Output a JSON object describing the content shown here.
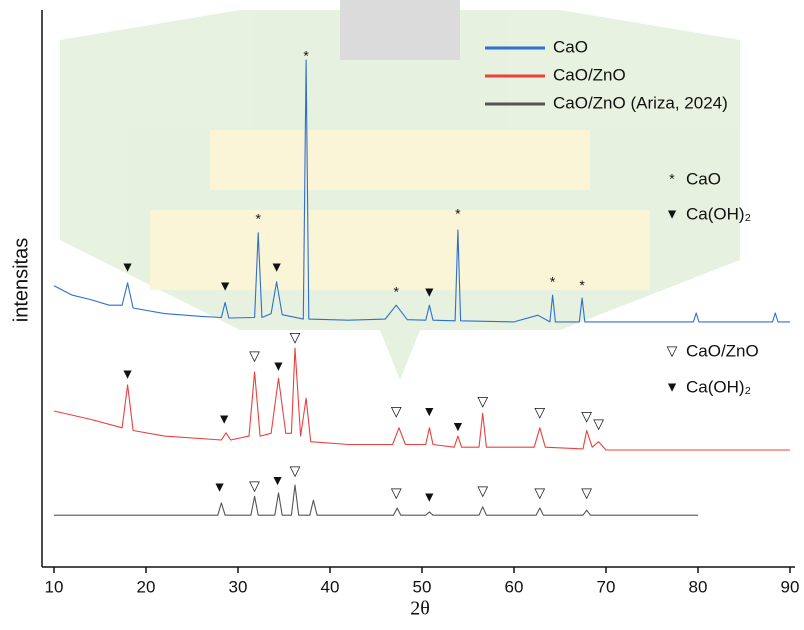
{
  "chart_data": {
    "type": "line",
    "x_label": "2θ",
    "y_label": "intensitas",
    "xlim": [
      10,
      90
    ],
    "xticks": [
      10,
      20,
      30,
      40,
      50,
      60,
      70,
      80,
      90
    ],
    "ylim": [
      0,
      100
    ],
    "series": [
      {
        "name": "CaO",
        "color": "#2f6fd0",
        "x": [
          10,
          12,
          14,
          16,
          17.4,
          18,
          18.6,
          22,
          26,
          28.2,
          28.6,
          29,
          31.8,
          32.2,
          32.6,
          33.6,
          34.2,
          34.8,
          37.1,
          37.4,
          37.7,
          42,
          46,
          47.2,
          48.4,
          50.4,
          50.8,
          51.2,
          53.6,
          53.9,
          54.2,
          60,
          62.6,
          63.9,
          64.2,
          64.5,
          67.1,
          67.4,
          67.7,
          79.5,
          79.8,
          80.1,
          88.1,
          88.4,
          88.7,
          90
        ],
        "values": [
          50.5,
          48.8,
          48,
          47,
          47,
          51,
          46.5,
          45.5,
          45,
          44.8,
          47.5,
          44.7,
          44.8,
          60,
          44.8,
          45.5,
          51.2,
          45.3,
          44.5,
          91,
          44.5,
          44.3,
          44.5,
          47,
          44.4,
          44.3,
          47,
          44.3,
          44.2,
          60.5,
          44.2,
          44,
          45.2,
          44,
          48.8,
          44,
          44,
          48.3,
          44,
          44,
          45.6,
          44,
          44,
          45.6,
          44,
          44
        ]
      },
      {
        "name": "CaO/ZnO",
        "color": "#e8413f",
        "x": [
          10,
          14,
          17.4,
          18,
          18.6,
          22,
          28.2,
          28.7,
          29.2,
          31.2,
          31.8,
          32.4,
          33.6,
          34.4,
          35.2,
          35.8,
          36.2,
          36.8,
          37.4,
          37.9,
          42,
          46.8,
          47.5,
          48.2,
          50.4,
          50.8,
          51.2,
          53.5,
          53.9,
          54.3,
          56.2,
          56.6,
          57,
          62.2,
          62.8,
          63.4,
          67.5,
          67.9,
          68.5,
          69.2,
          70,
          90
        ],
        "values": [
          28,
          26.5,
          25,
          32.7,
          24.5,
          23.5,
          22.8,
          24.1,
          22.8,
          23.5,
          35,
          23.5,
          24,
          33.9,
          24,
          24,
          39.3,
          23.5,
          30.3,
          22.5,
          22,
          22,
          25,
          22,
          22,
          25,
          22,
          21.5,
          23.5,
          21.5,
          21.5,
          27.6,
          21.5,
          21.5,
          25,
          21.5,
          21.2,
          24.5,
          21.5,
          22.5,
          21,
          21
        ]
      },
      {
        "name": "CaO/ZnO (Ariza, 2024)",
        "color": "#555555",
        "x": [
          10,
          27.8,
          28.2,
          28.6,
          31.4,
          31.8,
          32.2,
          34,
          34.4,
          34.8,
          35.8,
          36.2,
          36.6,
          37.8,
          38.2,
          38.6,
          46.9,
          47.3,
          47.7,
          50.4,
          50.8,
          51.2,
          56.2,
          56.6,
          57,
          62.4,
          62.8,
          63.2,
          67.5,
          67.9,
          68.3,
          80
        ],
        "values": [
          9.3,
          9.3,
          11.5,
          9.3,
          9.3,
          12.7,
          9.3,
          9.3,
          13.3,
          9.3,
          9.3,
          14.7,
          9.3,
          9.3,
          12,
          9.3,
          9.3,
          10.6,
          9.3,
          9.3,
          9.9,
          9.3,
          9.3,
          10.8,
          9.3,
          9.3,
          10.6,
          9.3,
          9.3,
          10.2,
          9.3,
          9.3
        ]
      }
    ],
    "legend_position": "upper right",
    "annotations": [
      {
        "text": "*",
        "x": 37.4,
        "y": 91.6
      },
      {
        "text": "▼",
        "x": 18,
        "y": 53.7
      },
      {
        "text": "▼",
        "x": 28.6,
        "y": 50.3
      },
      {
        "text": "*",
        "x": 32.2,
        "y": 62.3
      },
      {
        "text": "▼",
        "x": 34.2,
        "y": 53.7
      },
      {
        "text": "*",
        "x": 47.2,
        "y": 49.2
      },
      {
        "text": "▼",
        "x": 50.8,
        "y": 49.2
      },
      {
        "text": "*",
        "x": 53.9,
        "y": 63.2
      },
      {
        "text": "*",
        "x": 64.2,
        "y": 51
      },
      {
        "text": "*",
        "x": 67.4,
        "y": 50.4
      },
      {
        "text": "▽",
        "x": 36.2,
        "y": 41.1
      },
      {
        "text": "▽",
        "x": 31.8,
        "y": 37.7
      },
      {
        "text": "▼",
        "x": 18,
        "y": 34.5
      },
      {
        "text": "▼",
        "x": 34.4,
        "y": 35.9
      },
      {
        "text": "▼",
        "x": 28.5,
        "y": 26.4
      },
      {
        "text": "▽",
        "x": 47.2,
        "y": 27.8
      },
      {
        "text": "▼",
        "x": 50.8,
        "y": 27.8
      },
      {
        "text": "▼",
        "x": 53.9,
        "y": 25.1
      },
      {
        "text": "▽",
        "x": 56.6,
        "y": 29.6
      },
      {
        "text": "▽",
        "x": 62.8,
        "y": 27.6
      },
      {
        "text": "▽",
        "x": 67.9,
        "y": 26.9
      },
      {
        "text": "▽",
        "x": 69.2,
        "y": 25.5
      },
      {
        "text": "▼",
        "x": 28,
        "y": 14.2
      },
      {
        "text": "▽",
        "x": 31.8,
        "y": 14.4
      },
      {
        "text": "▼",
        "x": 34.3,
        "y": 15.4
      },
      {
        "text": "▽",
        "x": 36.2,
        "y": 17.1
      },
      {
        "text": "▽",
        "x": 47.2,
        "y": 13.1
      },
      {
        "text": "▼",
        "x": 50.8,
        "y": 12.4
      },
      {
        "text": "▽",
        "x": 56.6,
        "y": 13.5
      },
      {
        "text": "▽",
        "x": 62.8,
        "y": 13.1
      },
      {
        "text": "▽",
        "x": 67.9,
        "y": 13.1
      }
    ],
    "phase_keys": [
      {
        "symbol": "*",
        "label": "CaO"
      },
      {
        "symbol": "▼",
        "label": "Ca(OH)₂"
      },
      {
        "symbol": "▽",
        "label": "CaO/ZnO"
      },
      {
        "symbol": "▼",
        "label": "Ca(OH)₂"
      }
    ]
  }
}
